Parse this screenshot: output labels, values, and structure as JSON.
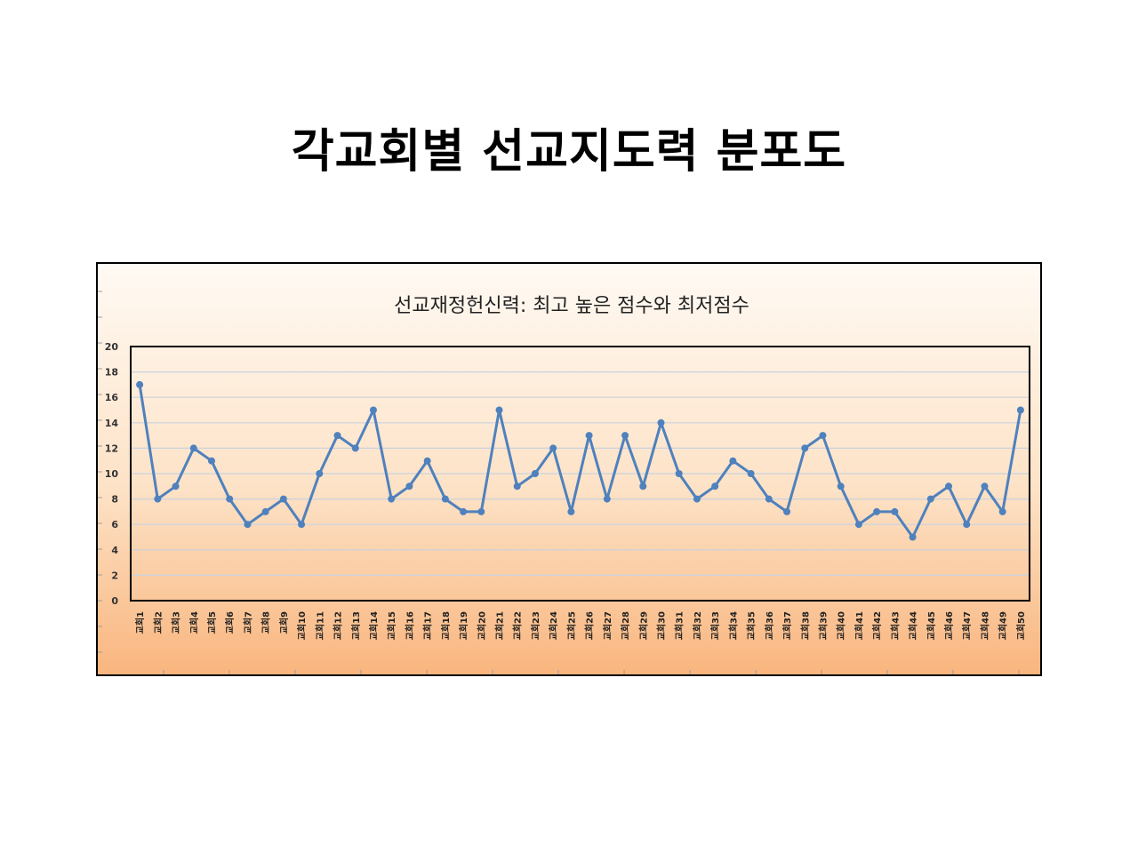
{
  "slide": {
    "title": "각교회별 선교지도력 분포도"
  },
  "chart_data": {
    "type": "line",
    "title": "선교재정헌신력: 최고 높은 점수와 최저점수",
    "xlabel": "",
    "ylabel": "",
    "ylim": [
      0,
      20
    ],
    "yticks": [
      0,
      2,
      4,
      6,
      8,
      10,
      12,
      14,
      16,
      18,
      20
    ],
    "grid": true,
    "legend": "none",
    "categories": [
      "교회1",
      "교회2",
      "교회3",
      "교회4",
      "교회5",
      "교회6",
      "교회7",
      "교회8",
      "교회9",
      "교회10",
      "교회11",
      "교회12",
      "교회13",
      "교회14",
      "교회15",
      "교회16",
      "교회17",
      "교회18",
      "교회19",
      "교회20",
      "교회21",
      "교회22",
      "교회23",
      "교회24",
      "교회25",
      "교회26",
      "교회27",
      "교회28",
      "교회29",
      "교회30",
      "교회31",
      "교회32",
      "교회33",
      "교회34",
      "교회35",
      "교회36",
      "교회37",
      "교회38",
      "교회39",
      "교회40",
      "교회41",
      "교회42",
      "교회43",
      "교회44",
      "교회45",
      "교회46",
      "교회47",
      "교회48",
      "교회49",
      "교회50"
    ],
    "series": [
      {
        "values": [
          17,
          8,
          9,
          12,
          11,
          8,
          6,
          7,
          8,
          6,
          10,
          13,
          12,
          15,
          8,
          9,
          11,
          8,
          7,
          7,
          15,
          9,
          10,
          12,
          7,
          13,
          8,
          13,
          9,
          14,
          10,
          8,
          9,
          11,
          10,
          8,
          7,
          12,
          13,
          9,
          6,
          7,
          7,
          5,
          8,
          9,
          6,
          9,
          7,
          15
        ],
        "color": "#4f81bd"
      }
    ]
  }
}
